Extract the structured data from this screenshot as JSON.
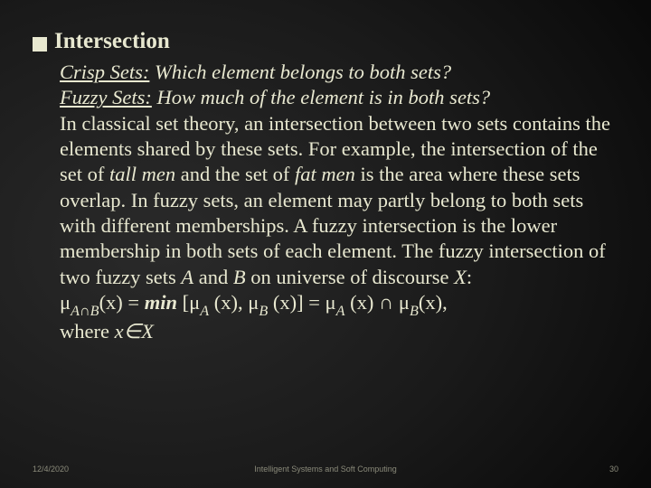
{
  "colors": {
    "background_center": "#2a2a2a",
    "background_edge": "#000000",
    "text": "#e8e8d0",
    "footer_text": "#8a8a7a",
    "bullet": "#e8e8d0"
  },
  "typography": {
    "body_family": "Times New Roman",
    "footer_family": "Arial",
    "heading_size_pt": 19,
    "body_size_pt": 17,
    "footer_size_pt": 7
  },
  "heading": "Intersection",
  "body": {
    "crisp_label": "Crisp Sets:",
    "crisp_q": " Which element belongs to both sets?",
    "fuzzy_label": "Fuzzy Sets:",
    "fuzzy_q": " How much of the element is in both sets?",
    "para1_a": "In classical set theory, an intersection between two sets contains the elements shared by these sets. For example, the intersection of the set of ",
    "tall_men": "tall men",
    "para1_b": " and the set of ",
    "fat_men": "fat men",
    "para1_c": " is the area where these sets overlap. In fuzzy sets, an element may partly belong to both sets with different memberships. A fuzzy intersection is the lower membership in both sets of each element. The fuzzy intersection of two fuzzy sets ",
    "A": "A",
    "and": " and ",
    "B": "B",
    "on_uni": " on universe of discourse ",
    "X": "X",
    "colon": ":",
    "formula": {
      "mu": "μ",
      "subA": "A",
      "cap": "∩",
      "subB": "B",
      "xeq": "(x) = ",
      "min": "min",
      "open": " [",
      "mid1": " (x), ",
      "mid2": " (x)] = ",
      "mid3": " (x) ",
      "capbig": "∩ ",
      "end": "(x),"
    },
    "where": "where ",
    "xin": "x∈X"
  },
  "footer": {
    "date": "12/4/2020",
    "center": "Intelligent Systems and Soft Computing",
    "page": "30"
  }
}
